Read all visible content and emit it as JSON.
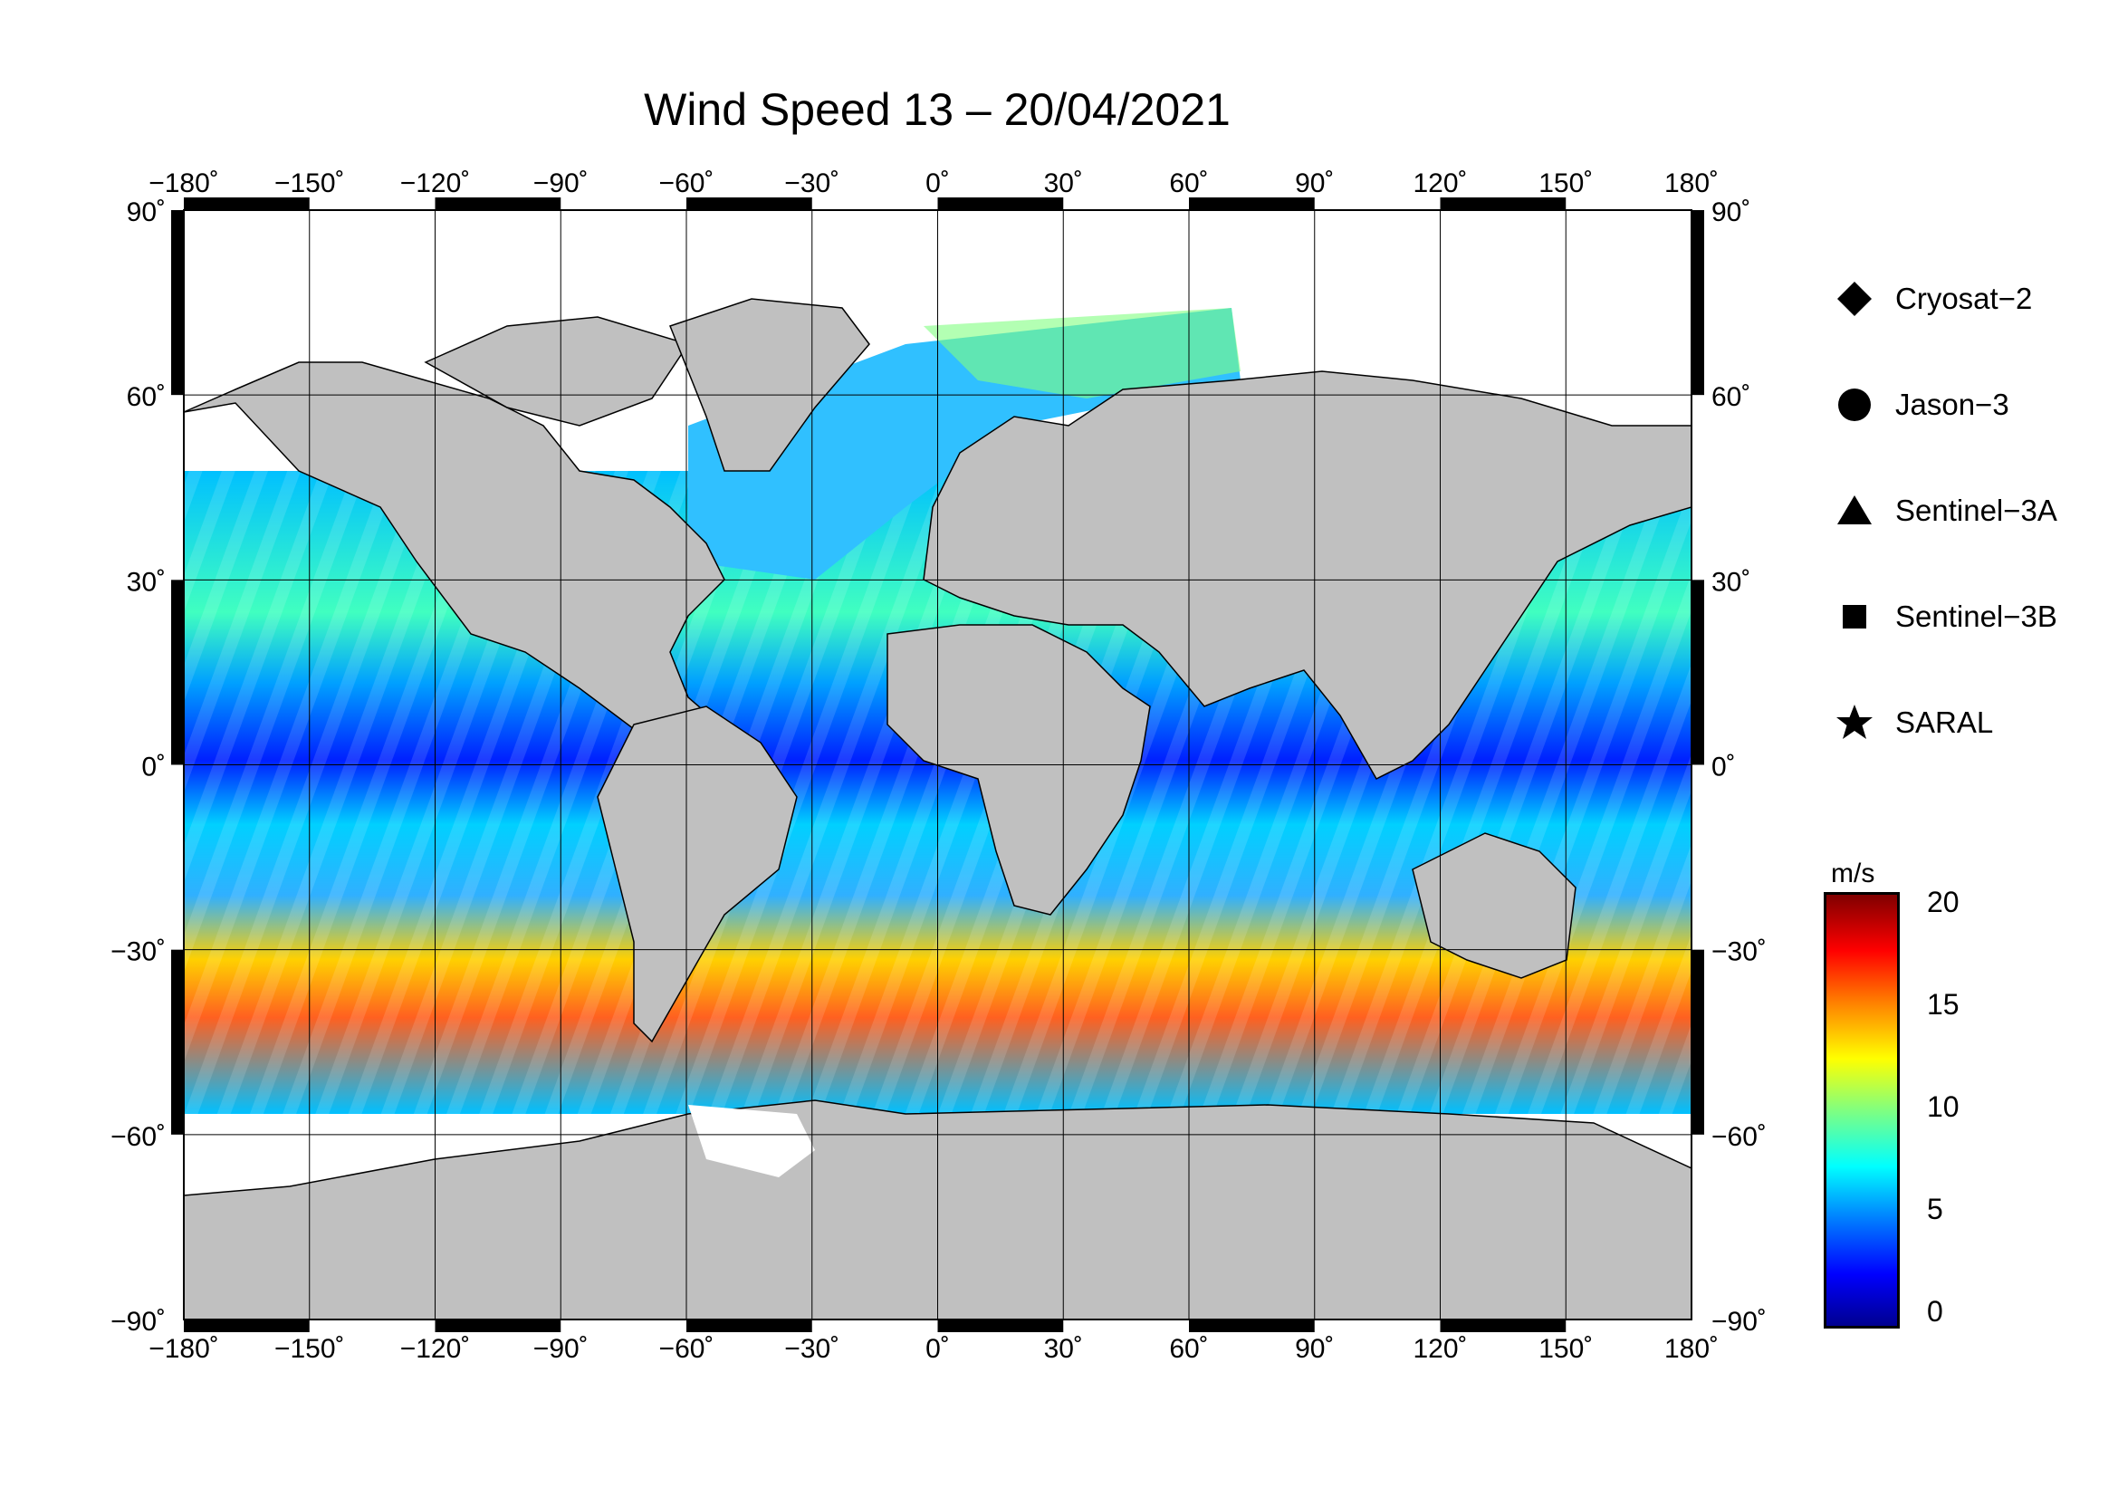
{
  "title": "Wind Speed 13 – 20/04/2021",
  "lon_ticks": [
    "−180˚",
    "−150˚",
    "−120˚",
    "−90˚",
    "−60˚",
    "−30˚",
    "0˚",
    "30˚",
    "60˚",
    "90˚",
    "120˚",
    "150˚",
    "180˚"
  ],
  "lat_ticks_left": [
    "90˚",
    "60˚",
    "30˚",
    "0˚",
    "−30˚",
    "−60˚",
    "−90˚"
  ],
  "lat_ticks_right": [
    "90˚",
    "60˚",
    "30˚",
    "0˚",
    "−30˚",
    "−60˚",
    "−90˚"
  ],
  "legend": [
    {
      "label": "Cryosat−2",
      "symbol": "diamond-icon"
    },
    {
      "label": "Jason−3",
      "symbol": "circle-icon"
    },
    {
      "label": "Sentinel−3A",
      "symbol": "triangle-icon"
    },
    {
      "label": "Sentinel−3B",
      "symbol": "square-icon"
    },
    {
      "label": "SARAL",
      "symbol": "star-icon"
    }
  ],
  "colorbar": {
    "unit": "m/s",
    "ticks": [
      "20",
      "15",
      "10",
      "5",
      "0"
    ],
    "range": [
      0,
      20
    ],
    "colors": [
      "#00008f",
      "#0000ff",
      "#0080ff",
      "#00ffff",
      "#80ff80",
      "#ffff00",
      "#ff8000",
      "#ff0000",
      "#800000"
    ]
  },
  "colors": {
    "land": "#c0c0c0",
    "ice": "#ffffff",
    "frame": "#000000"
  }
}
